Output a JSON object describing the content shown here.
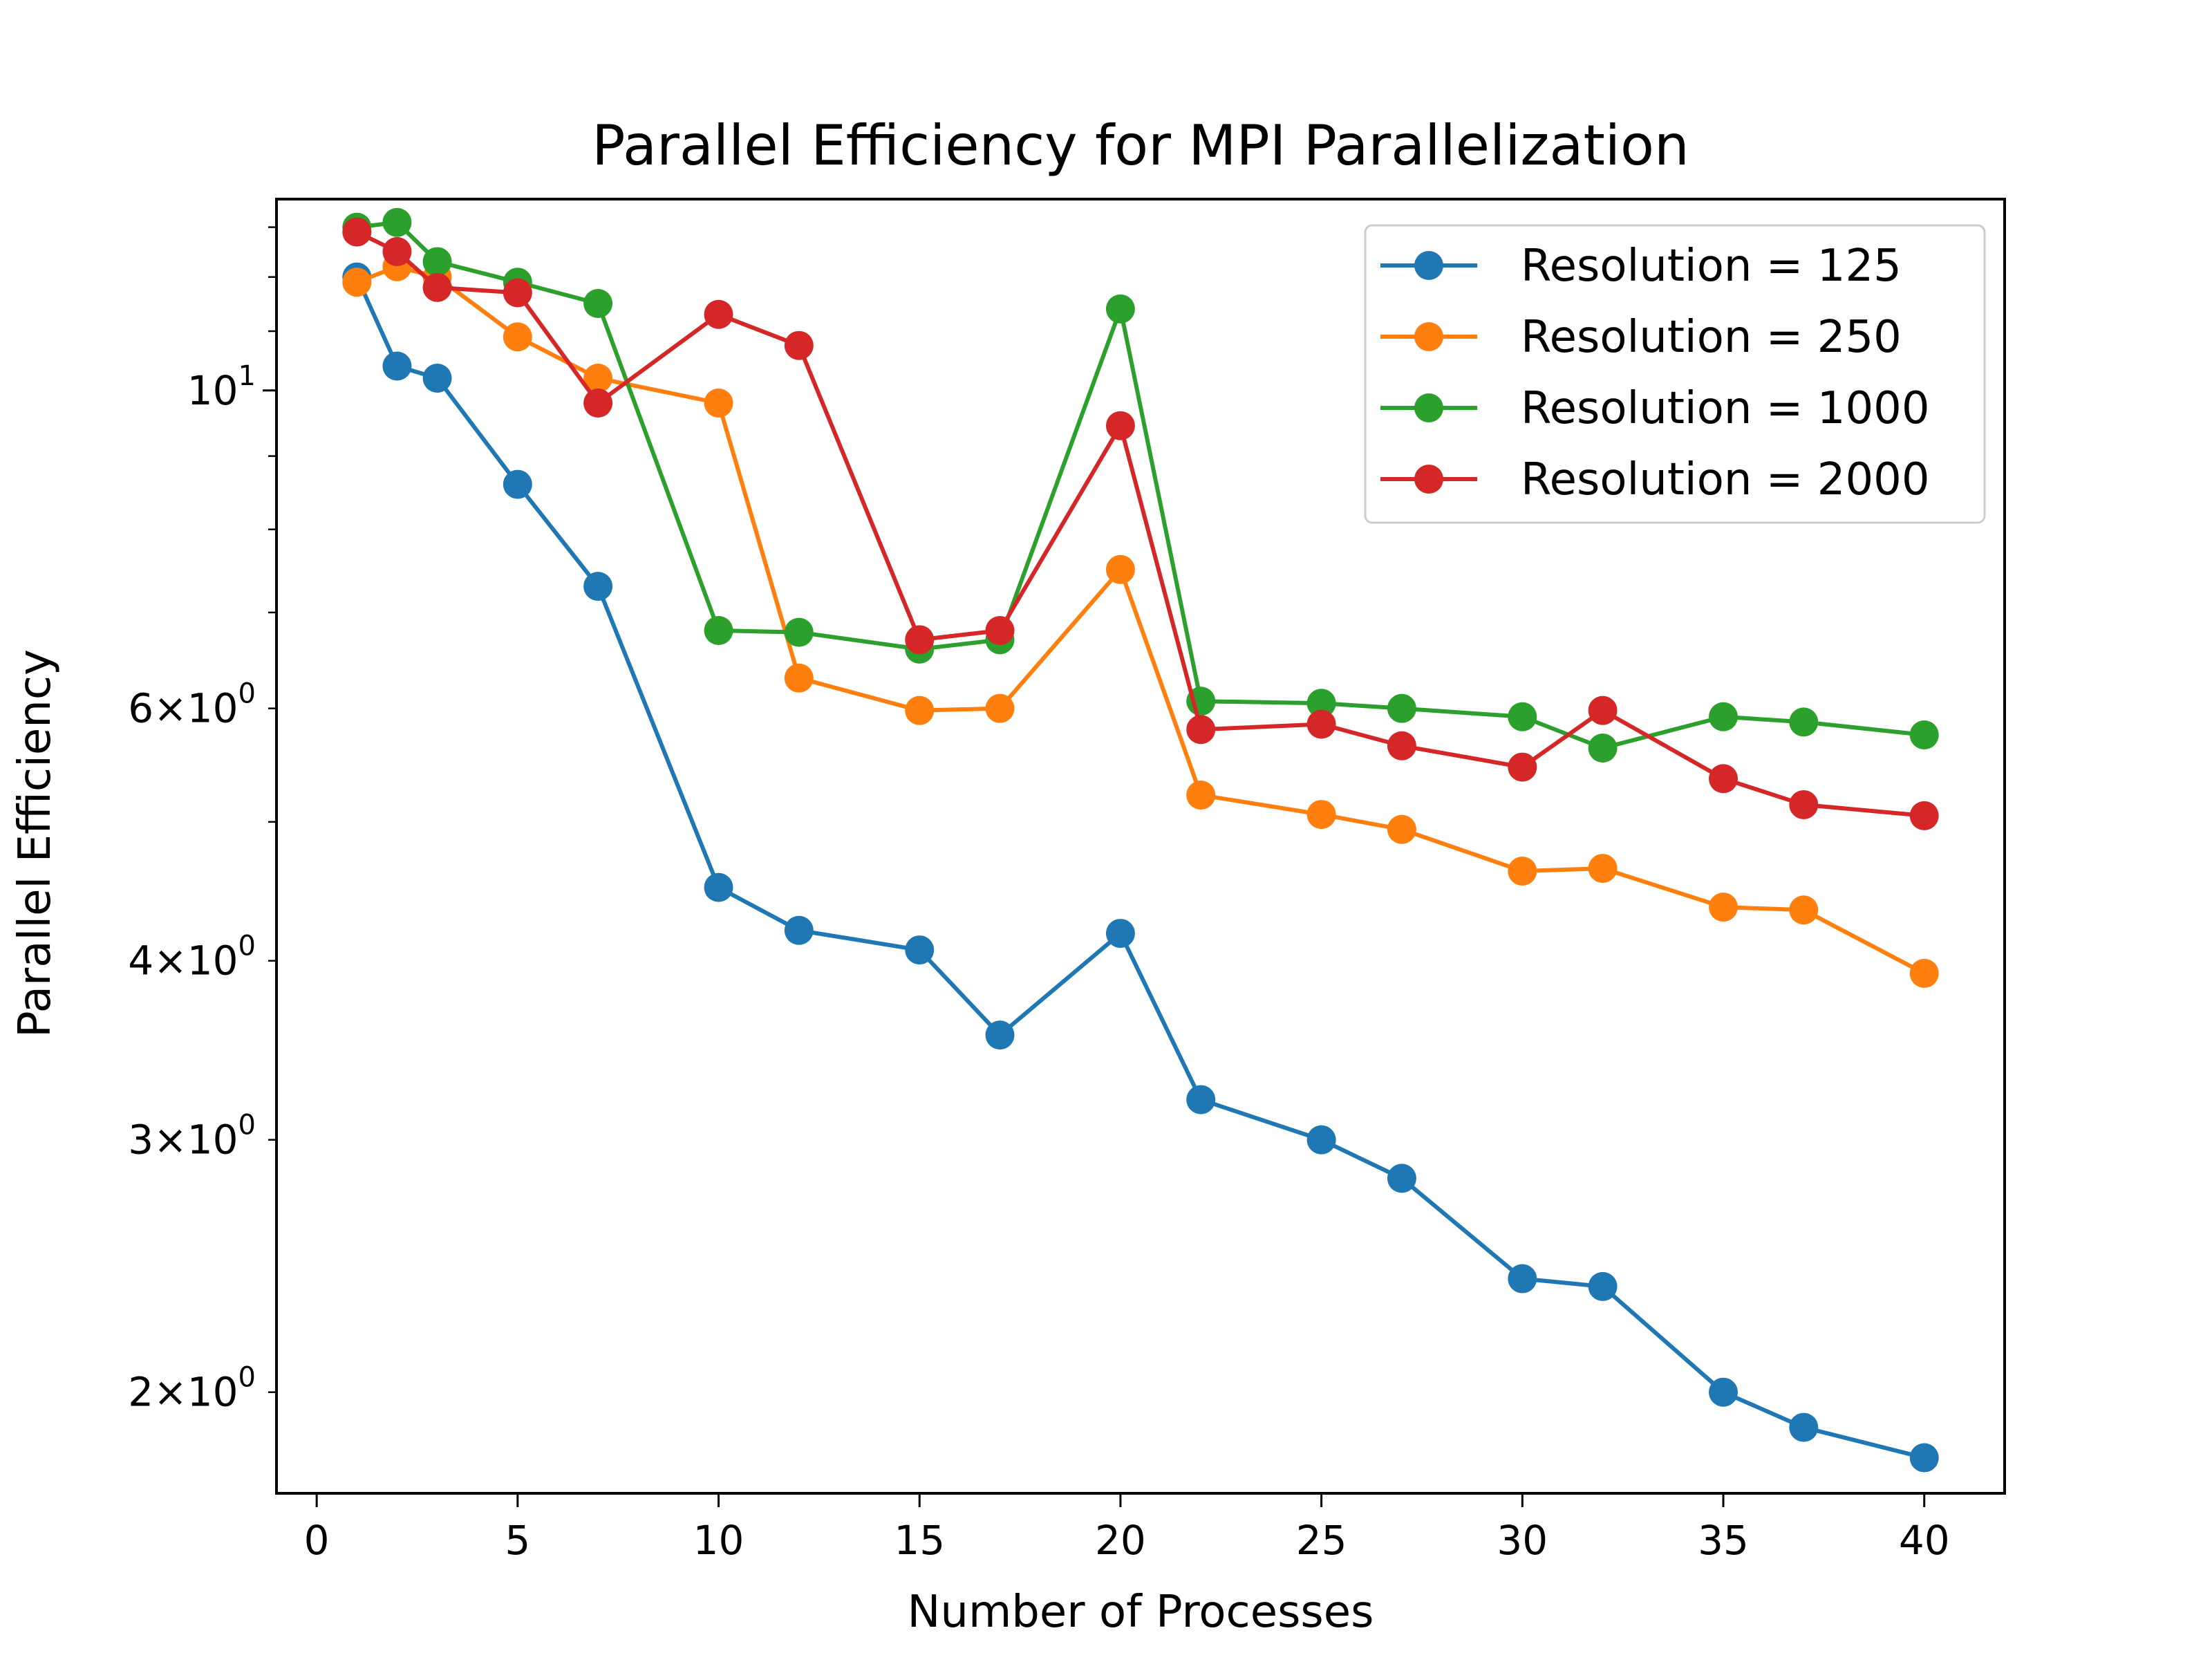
{
  "chart_data": {
    "type": "line",
    "title": "Parallel Efficiency for MPI Parallelization",
    "xlabel": "Number of Processes",
    "ylabel": "Parallel Efficiency",
    "x_scale": "linear",
    "y_scale": "log",
    "xlim": [
      -1,
      42
    ],
    "ylim": [
      1.7,
      13.6
    ],
    "grid": false,
    "legend_position": "top-right",
    "x_ticks": [
      {
        "value": 0,
        "label": "0"
      },
      {
        "value": 5,
        "label": "5"
      },
      {
        "value": 10,
        "label": "10"
      },
      {
        "value": 15,
        "label": "15"
      },
      {
        "value": 20,
        "label": "20"
      },
      {
        "value": 25,
        "label": "25"
      },
      {
        "value": 30,
        "label": "30"
      },
      {
        "value": 35,
        "label": "35"
      },
      {
        "value": 40,
        "label": "40"
      }
    ],
    "y_ticks": [
      {
        "value": 2,
        "mantissa": "2",
        "sup": "0"
      },
      {
        "value": 3,
        "mantissa": "3",
        "sup": "0"
      },
      {
        "value": 4,
        "mantissa": "4",
        "sup": "0"
      },
      {
        "value": 6,
        "mantissa": "6",
        "sup": "0"
      },
      {
        "value": 10,
        "mantissa": "",
        "sup": "1"
      }
    ],
    "x": [
      1,
      2,
      3,
      5,
      7,
      10,
      12,
      15,
      17,
      20,
      22,
      25,
      27,
      30,
      32,
      35,
      37,
      40
    ],
    "series": [
      {
        "name": "Resolution = 125",
        "color": "#1f77b4",
        "values": [
          12.0,
          10.4,
          10.2,
          8.6,
          7.3,
          4.5,
          4.2,
          4.07,
          3.55,
          4.18,
          3.2,
          3.0,
          2.82,
          2.4,
          2.37,
          2.0,
          1.89,
          1.8
        ]
      },
      {
        "name": "Resolution = 250",
        "color": "#ff7f0e",
        "values": [
          11.9,
          12.2,
          12.0,
          10.9,
          10.2,
          9.8,
          6.3,
          5.98,
          6.0,
          7.5,
          5.22,
          5.06,
          4.94,
          4.62,
          4.64,
          4.36,
          4.34,
          3.92
        ]
      },
      {
        "name": "Resolution = 1000",
        "color": "#2ca02c",
        "values": [
          13.0,
          13.1,
          12.3,
          11.9,
          11.5,
          6.8,
          6.78,
          6.6,
          6.7,
          11.4,
          6.07,
          6.05,
          6.0,
          5.92,
          5.63,
          5.92,
          5.87,
          5.75
        ]
      },
      {
        "name": "Resolution = 2000",
        "color": "#d62728",
        "values": [
          12.9,
          12.5,
          11.8,
          11.7,
          9.8,
          11.3,
          10.75,
          6.7,
          6.8,
          9.45,
          5.8,
          5.85,
          5.65,
          5.46,
          5.98,
          5.36,
          5.14,
          5.05
        ]
      }
    ]
  }
}
